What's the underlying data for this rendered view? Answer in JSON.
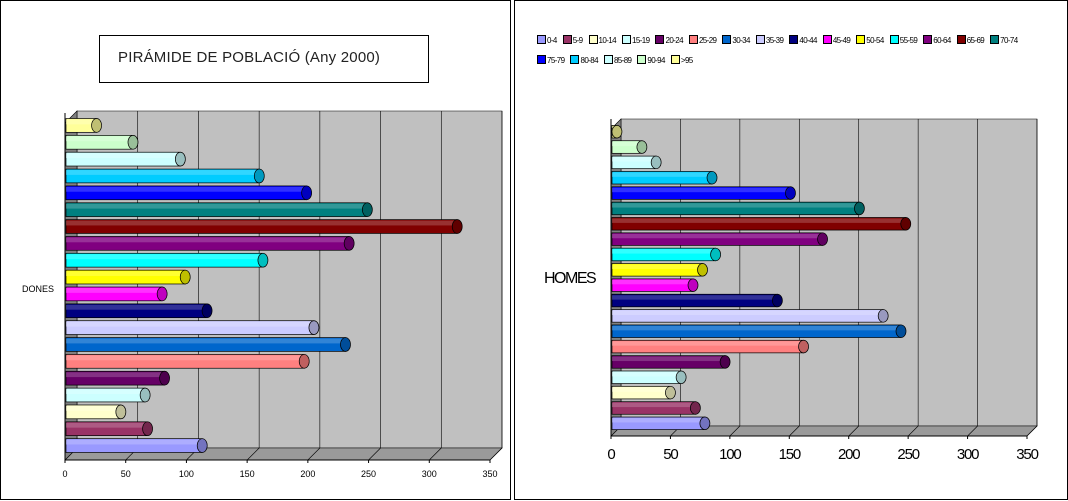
{
  "chart_data": [
    {
      "type": "bar",
      "orientation": "horizontal",
      "title": "PIRÁMIDE DE POBLACIÓ (Any 2000)",
      "category_label": "DONES",
      "categories": [
        "0-4",
        "5-9",
        "10-14",
        "15-19",
        "20-24",
        "25-29",
        "30-34",
        "35-39",
        "40-44",
        "45-49",
        "50-54",
        "55-59",
        "60-64",
        "65-69",
        "70-74",
        "75-79",
        "80-84",
        "85-89",
        "90-94",
        ">95"
      ],
      "values": [
        113,
        68,
        46,
        66,
        82,
        197,
        231,
        205,
        117,
        80,
        99,
        163,
        234,
        323,
        249,
        199,
        160,
        95,
        56,
        26
      ],
      "xlim": [
        0,
        350
      ],
      "xticks": [
        "0",
        "50",
        "100",
        "150",
        "200",
        "250",
        "300",
        "350"
      ]
    },
    {
      "type": "bar",
      "orientation": "horizontal",
      "category_label": "HOMES",
      "categories": [
        "0-4",
        "5-9",
        "10-14",
        "15-19",
        "20-24",
        "25-29",
        "30-34",
        "35-39",
        "40-44",
        "45-49",
        "50-54",
        "55-59",
        "60-64",
        "65-69",
        "70-74",
        "75-79",
        "80-84",
        "85-89",
        "90-94",
        ">95"
      ],
      "values": [
        79,
        71,
        50,
        59,
        96,
        162,
        244,
        229,
        140,
        69,
        77,
        88,
        178,
        248,
        209,
        151,
        85,
        38,
        26,
        5
      ],
      "xlim": [
        0,
        350
      ],
      "xticks": [
        "0",
        "50",
        "100",
        "150",
        "200",
        "250",
        "300",
        "350"
      ],
      "legend": [
        "0-4",
        "5-9",
        "10-14",
        "15-19",
        "20-24",
        "25-29",
        "30-34",
        "35-39",
        "40-44",
        "45-49",
        "50-54",
        "55-59",
        "60-64",
        "65-69",
        "70-74",
        "75-79",
        "80-84",
        "85-89",
        "90-94",
        ">95"
      ]
    }
  ],
  "series_colors": [
    "#9999ff",
    "#993366",
    "#ffffcc",
    "#ccffff",
    "#660066",
    "#ff8080",
    "#0066cc",
    "#ccccff",
    "#000080",
    "#ff00ff",
    "#ffff00",
    "#00ffff",
    "#800080",
    "#800000",
    "#008080",
    "#0000ff",
    "#00ccff",
    "#ccffff",
    "#ccffcc",
    "#ffff99"
  ]
}
